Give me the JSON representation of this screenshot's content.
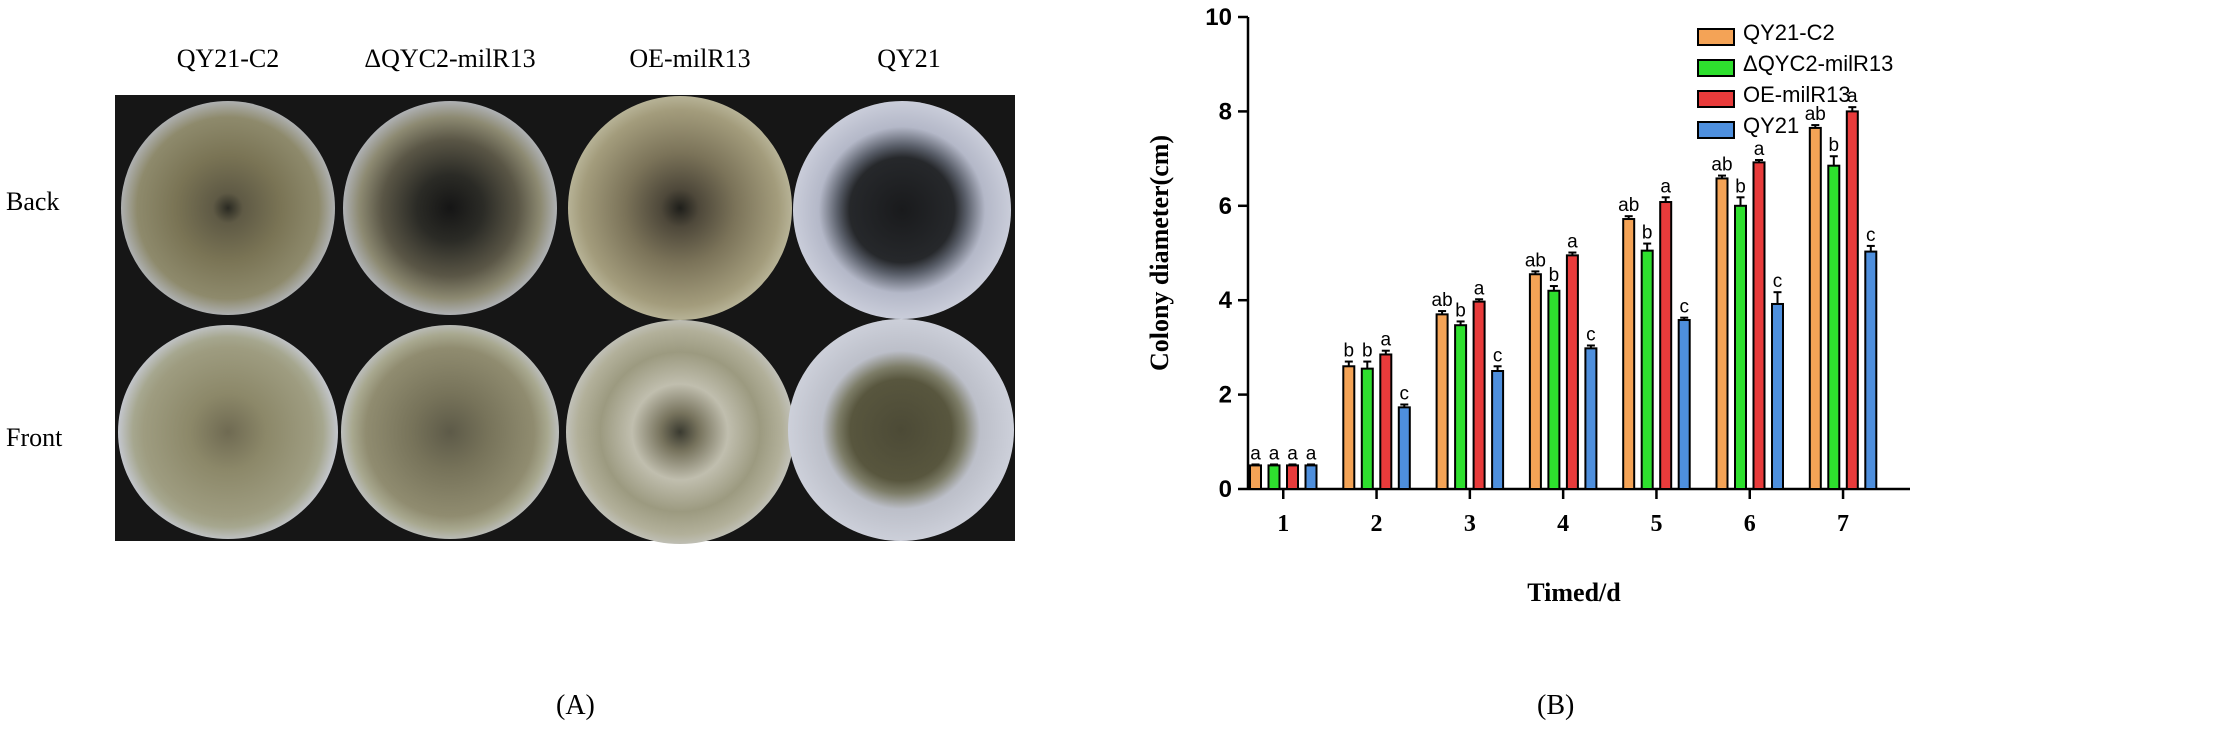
{
  "panel_a": {
    "label": "(A)",
    "columns": [
      "QY21-C2",
      "ΔQYC2-milR13",
      "OE-milR13",
      "QY21"
    ],
    "rows": [
      "Back",
      "Front"
    ]
  },
  "panel_b": {
    "label": "(B)"
  },
  "colors": {
    "QY21-C2": "#F4A356",
    "ΔQYC2-milR13": "#2EE02E",
    "OE-milR13": "#E83B3B",
    "QY21": "#4E8FDD"
  },
  "chart_data": {
    "type": "bar",
    "xlabel": "Timed/d",
    "ylabel": "Colony diameter(cm)",
    "ylim": [
      0,
      10
    ],
    "yticks": [
      0,
      2,
      4,
      6,
      8,
      10
    ],
    "categories": [
      "1",
      "2",
      "3",
      "4",
      "5",
      "6",
      "7"
    ],
    "legend_position": "top-right",
    "series": [
      {
        "name": "QY21-C2",
        "values": [
          0.5,
          2.6,
          3.7,
          4.55,
          5.72,
          6.58,
          7.65
        ],
        "errors": [
          0.02,
          0.1,
          0.07,
          0.06,
          0.06,
          0.06,
          0.06
        ],
        "letters": [
          "a",
          "b",
          "ab",
          "ab",
          "ab",
          "ab",
          "ab"
        ]
      },
      {
        "name": "ΔQYC2-milR13",
        "values": [
          0.5,
          2.55,
          3.47,
          4.2,
          5.05,
          6.0,
          6.85
        ],
        "errors": [
          0.02,
          0.15,
          0.08,
          0.1,
          0.15,
          0.18,
          0.2
        ],
        "letters": [
          "a",
          "b",
          "b",
          "b",
          "b",
          "b",
          "b"
        ]
      },
      {
        "name": "OE-milR13",
        "values": [
          0.5,
          2.85,
          3.97,
          4.95,
          6.08,
          6.92,
          8.0
        ],
        "errors": [
          0.02,
          0.08,
          0.05,
          0.06,
          0.1,
          0.05,
          0.09
        ],
        "letters": [
          "a",
          "a",
          "a",
          "a",
          "a",
          "a",
          "a"
        ]
      },
      {
        "name": "QY21",
        "values": [
          0.5,
          1.73,
          2.5,
          2.98,
          3.58,
          3.92,
          5.03
        ],
        "errors": [
          0.02,
          0.06,
          0.1,
          0.06,
          0.05,
          0.25,
          0.12
        ],
        "letters": [
          "a",
          "c",
          "c",
          "c",
          "c",
          "c",
          "c"
        ]
      }
    ]
  }
}
